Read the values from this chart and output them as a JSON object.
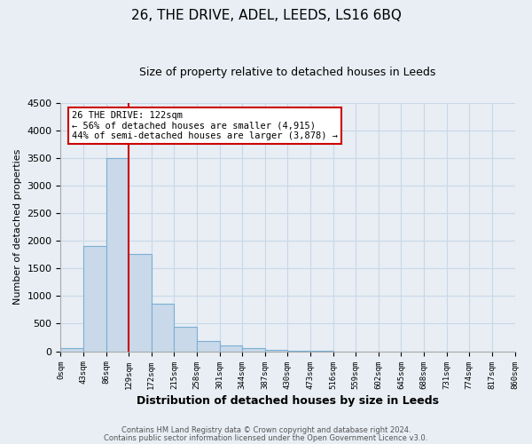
{
  "title": "26, THE DRIVE, ADEL, LEEDS, LS16 6BQ",
  "subtitle": "Size of property relative to detached houses in Leeds",
  "xlabel": "Distribution of detached houses by size in Leeds",
  "ylabel": "Number of detached properties",
  "bin_labels": [
    "0sqm",
    "43sqm",
    "86sqm",
    "129sqm",
    "172sqm",
    "215sqm",
    "258sqm",
    "301sqm",
    "344sqm",
    "387sqm",
    "430sqm",
    "473sqm",
    "516sqm",
    "559sqm",
    "602sqm",
    "645sqm",
    "688sqm",
    "731sqm",
    "774sqm",
    "817sqm",
    "860sqm"
  ],
  "bar_values": [
    50,
    1900,
    3490,
    1760,
    860,
    450,
    185,
    100,
    60,
    30,
    15,
    5,
    0,
    0,
    0,
    0,
    0,
    0,
    0,
    0
  ],
  "bar_color": "#c9d9ea",
  "bar_edge_color": "#7aafd4",
  "grid_color": "#c8d8e8",
  "vline_x": 3,
  "vline_color": "#cc0000",
  "annotation_text": "26 THE DRIVE: 122sqm\n← 56% of detached houses are smaller (4,915)\n44% of semi-detached houses are larger (3,878) →",
  "annotation_box_facecolor": "#ffffff",
  "annotation_box_edgecolor": "#cc0000",
  "ylim": [
    0,
    4500
  ],
  "yticks": [
    0,
    500,
    1000,
    1500,
    2000,
    2500,
    3000,
    3500,
    4000,
    4500
  ],
  "footer_line1": "Contains HM Land Registry data © Crown copyright and database right 2024.",
  "footer_line2": "Contains public sector information licensed under the Open Government Licence v3.0.",
  "bg_color": "#e8eef4"
}
